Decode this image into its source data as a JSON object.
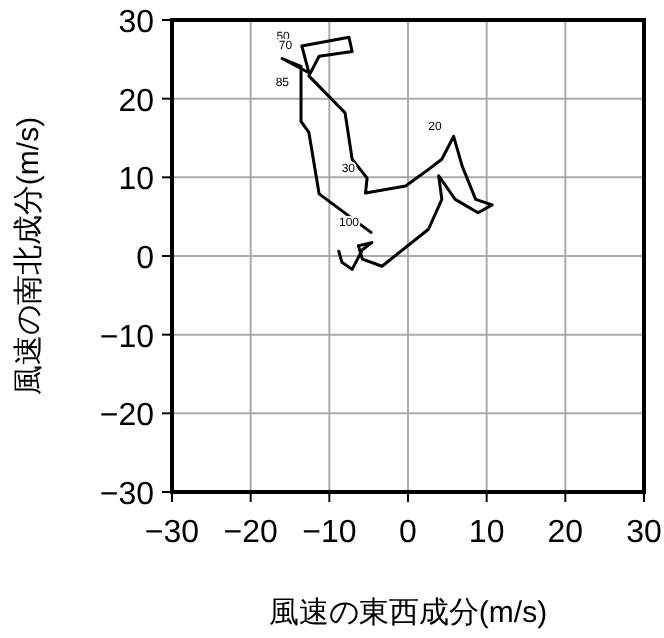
{
  "chart_data": {
    "type": "line",
    "xlabel": "風速の東西成分(m/s)",
    "ylabel": "風速の南北成分(m/s)",
    "series": [
      {
        "color": "#000000",
        "x": [
          -4.7,
          -11.3,
          -12.6,
          -13.6,
          -13.6,
          -16,
          -12.6,
          -13.5,
          -7.5,
          -7.1,
          -11.3,
          -12.6,
          -8,
          -7.1,
          -5.2,
          -5.4,
          -0.3,
          2.2,
          4.3,
          5.8,
          6.9,
          8.6,
          10.7,
          8.9,
          6,
          3.9,
          4.3,
          2.6,
          -3.3,
          -5.8,
          -6.3,
          -4.6,
          -5.8,
          -7.1,
          -8.4,
          -8.8
        ],
        "values": [
          3,
          7.9,
          15.7,
          17.1,
          24.1,
          25.1,
          23.3,
          26.7,
          27.8,
          26,
          25.4,
          22.9,
          18.2,
          12.3,
          9.9,
          8,
          8.9,
          10.7,
          12.3,
          15.2,
          11.4,
          7.2,
          6.5,
          5.5,
          7.2,
          10.2,
          7.2,
          3.4,
          -1.3,
          -0.4,
          1.3,
          1.7,
          0.8,
          -1.7,
          -0.8,
          0.6
        ]
      }
    ],
    "annotations": [
      {
        "text": "100",
        "x": -4.7,
        "y": 3
      },
      {
        "text": "30",
        "x": -5.2,
        "y": 9.9
      },
      {
        "text": "20",
        "x": 5.8,
        "y": 15.2
      },
      {
        "text": "85",
        "x": -13.6,
        "y": 20.8
      },
      {
        "text": "50",
        "x": -13.5,
        "y": 26.7
      },
      {
        "text": "70",
        "x": -13.2,
        "y": 25.6
      }
    ],
    "xlim": [
      -30,
      30
    ],
    "ylim": [
      -30,
      30
    ],
    "xticks": [
      -30,
      -20,
      -10,
      0,
      10,
      20,
      30
    ],
    "yticks": [
      -30,
      -20,
      -10,
      0,
      10,
      20,
      30
    ],
    "grid": true,
    "line_style": "solid",
    "marker": "none"
  }
}
